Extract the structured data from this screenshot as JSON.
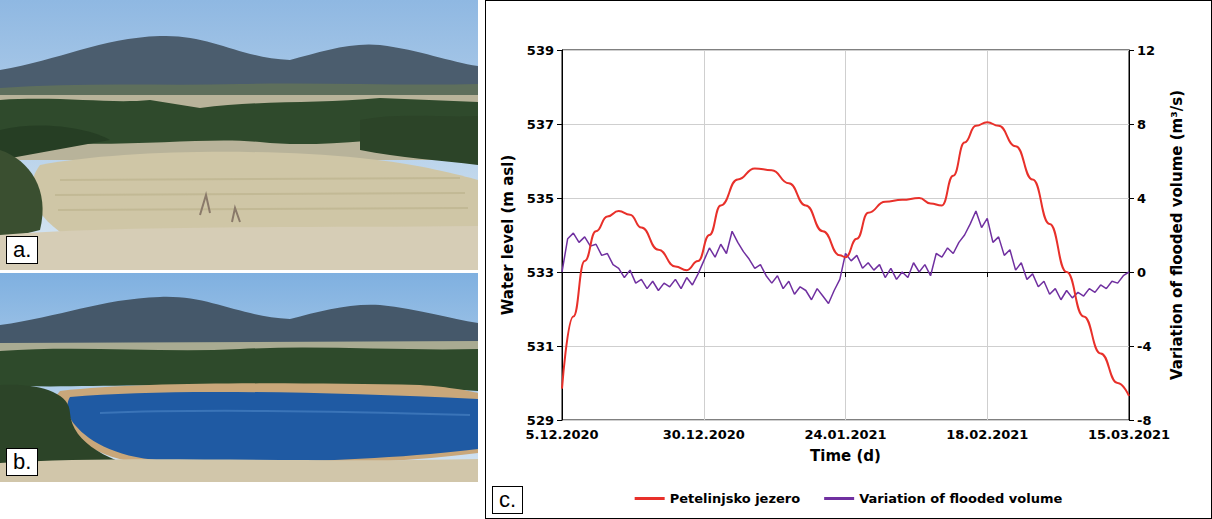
{
  "photos": [
    {
      "label": "a."
    },
    {
      "label": "b."
    }
  ],
  "chart_data": {
    "type": "line",
    "panel_label": "c.",
    "x_label": "Time (d)",
    "y_label": "Water level (m asl)",
    "y2_label": "Variation of flooded volume (m³/s)",
    "xlim": [
      "2020-12-05",
      "2021-03-15"
    ],
    "xticks": [
      {
        "value": "2020-12-05",
        "label": "5.12.2020"
      },
      {
        "value": "2020-12-30",
        "label": "30.12.2020"
      },
      {
        "value": "2021-01-24",
        "label": "24.01.2021"
      },
      {
        "value": "2021-02-18",
        "label": "18.02.2021"
      },
      {
        "value": "2021-03-15",
        "label": "15.03.2021"
      }
    ],
    "ylim": [
      529,
      539
    ],
    "yticks": [
      529,
      531,
      533,
      535,
      537,
      539
    ],
    "y2lim": [
      -8,
      12
    ],
    "y2ticks": [
      -8,
      -4,
      0,
      4,
      8,
      12
    ],
    "grid": true,
    "legend": "bottom",
    "series": [
      {
        "name": "Petelinjsko jezero",
        "color": "#e8302a",
        "x": [
          "2020-12-05",
          "2020-12-07",
          "2020-12-09",
          "2020-12-11",
          "2020-12-13",
          "2020-12-15",
          "2020-12-17",
          "2020-12-19",
          "2020-12-22",
          "2020-12-25",
          "2020-12-27",
          "2020-12-29",
          "2020-12-31",
          "2021-01-02",
          "2021-01-05",
          "2021-01-08",
          "2021-01-11",
          "2021-01-14",
          "2021-01-17",
          "2021-01-20",
          "2021-01-23",
          "2021-01-24",
          "2021-01-26",
          "2021-01-28",
          "2021-01-31",
          "2021-02-03",
          "2021-02-06",
          "2021-02-08",
          "2021-02-10",
          "2021-02-12",
          "2021-02-14",
          "2021-02-16",
          "2021-02-18",
          "2021-02-20",
          "2021-02-23",
          "2021-02-26",
          "2021-03-01",
          "2021-03-04",
          "2021-03-07",
          "2021-03-10",
          "2021-03-13",
          "2021-03-15"
        ],
        "values": [
          529.85,
          531.8,
          533.3,
          534.1,
          534.5,
          534.65,
          534.55,
          534.2,
          533.6,
          533.15,
          533.05,
          533.3,
          534.0,
          534.8,
          535.5,
          535.8,
          535.75,
          535.4,
          534.8,
          534.1,
          533.45,
          533.4,
          533.9,
          534.6,
          534.9,
          534.95,
          535.0,
          534.85,
          534.8,
          535.6,
          536.5,
          536.95,
          537.05,
          536.95,
          536.4,
          535.5,
          534.3,
          533.0,
          531.8,
          530.8,
          530.0,
          529.65
        ]
      },
      {
        "name": "Variation of flooded volume",
        "color": "#7030a0",
        "axis": "y2",
        "x": [
          "2020-12-05",
          "2020-12-06",
          "2020-12-07",
          "2020-12-08",
          "2020-12-09",
          "2020-12-10",
          "2020-12-11",
          "2020-12-12",
          "2020-12-13",
          "2020-12-14",
          "2020-12-15",
          "2020-12-16",
          "2020-12-17",
          "2020-12-18",
          "2020-12-19",
          "2020-12-20",
          "2020-12-21",
          "2020-12-22",
          "2020-12-23",
          "2020-12-24",
          "2020-12-25",
          "2020-12-26",
          "2020-12-27",
          "2020-12-28",
          "2020-12-29",
          "2020-12-30",
          "2020-12-31",
          "2021-01-01",
          "2021-01-02",
          "2021-01-03",
          "2021-01-04",
          "2021-01-05",
          "2021-01-06",
          "2021-01-07",
          "2021-01-08",
          "2021-01-09",
          "2021-01-10",
          "2021-01-11",
          "2021-01-12",
          "2021-01-13",
          "2021-01-14",
          "2021-01-15",
          "2021-01-16",
          "2021-01-17",
          "2021-01-18",
          "2021-01-19",
          "2021-01-20",
          "2021-01-21",
          "2021-01-22",
          "2021-01-23",
          "2021-01-24",
          "2021-01-25",
          "2021-01-26",
          "2021-01-27",
          "2021-01-28",
          "2021-01-29",
          "2021-01-30",
          "2021-01-31",
          "2021-02-01",
          "2021-02-02",
          "2021-02-03",
          "2021-02-04",
          "2021-02-05",
          "2021-02-06",
          "2021-02-07",
          "2021-02-08",
          "2021-02-09",
          "2021-02-10",
          "2021-02-11",
          "2021-02-12",
          "2021-02-13",
          "2021-02-14",
          "2021-02-15",
          "2021-02-16",
          "2021-02-17",
          "2021-02-18",
          "2021-02-19",
          "2021-02-20",
          "2021-02-21",
          "2021-02-22",
          "2021-02-23",
          "2021-02-24",
          "2021-02-25",
          "2021-02-26",
          "2021-02-27",
          "2021-02-28",
          "2021-03-01",
          "2021-03-02",
          "2021-03-03",
          "2021-03-04",
          "2021-03-05",
          "2021-03-06",
          "2021-03-07",
          "2021-03-08",
          "2021-03-09",
          "2021-03-10",
          "2021-03-11",
          "2021-03-12",
          "2021-03-13",
          "2021-03-14",
          "2021-03-15"
        ],
        "values": [
          0,
          1.8,
          2.1,
          1.6,
          1.9,
          1.4,
          1.5,
          0.9,
          1.0,
          0.4,
          0.2,
          -0.3,
          0.1,
          -0.6,
          -0.4,
          -0.9,
          -0.5,
          -1.0,
          -0.6,
          -0.8,
          -0.4,
          -0.9,
          -0.3,
          -0.7,
          -0.1,
          0.6,
          1.3,
          0.8,
          1.5,
          1.0,
          2.2,
          1.6,
          1.1,
          0.7,
          0.2,
          0.4,
          -0.2,
          -0.6,
          -0.2,
          -0.9,
          -0.5,
          -1.2,
          -0.8,
          -1.0,
          -1.5,
          -0.9,
          -1.3,
          -1.7,
          -1.0,
          -0.4,
          1.0,
          0.6,
          0.9,
          0.2,
          0.5,
          0.1,
          0.4,
          -0.3,
          0.2,
          -0.4,
          0,
          -0.3,
          0.5,
          0,
          0.4,
          -0.2,
          1.0,
          0.8,
          1.3,
          1.0,
          1.6,
          2.0,
          2.6,
          3.3,
          2.4,
          2.9,
          1.6,
          1.9,
          0.9,
          1.2,
          0.1,
          0.5,
          -0.4,
          -0.1,
          -0.8,
          -0.5,
          -1.2,
          -0.9,
          -1.5,
          -1.0,
          -1.4,
          -1.1,
          -1.3,
          -0.9,
          -1.1,
          -0.7,
          -0.9,
          -0.5,
          -0.6,
          -0.2,
          0
        ]
      }
    ]
  }
}
